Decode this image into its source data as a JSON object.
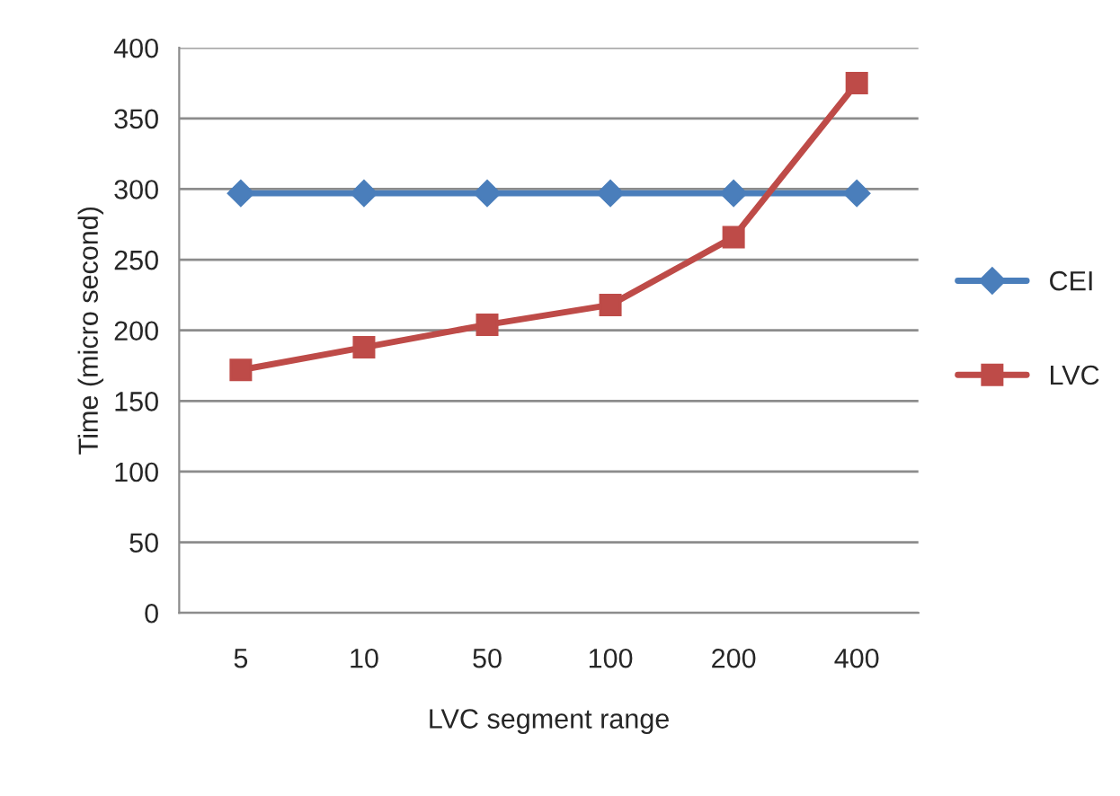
{
  "chart_data": {
    "type": "line",
    "xlabel": "LVC segment range",
    "ylabel": "Time (micro second)",
    "categories": [
      "5",
      "10",
      "50",
      "100",
      "200",
      "400"
    ],
    "series": [
      {
        "name": "CEI",
        "color": "#4a7ebb",
        "marker": "diamond",
        "values": [
          297,
          297,
          297,
          297,
          297,
          297
        ]
      },
      {
        "name": "LVC",
        "color": "#be4b48",
        "marker": "square",
        "values": [
          172,
          188,
          204,
          218,
          266,
          375
        ]
      }
    ],
    "ylim": [
      0,
      400
    ],
    "yticks": [
      0,
      50,
      100,
      150,
      200,
      250,
      300,
      350,
      400
    ],
    "grid": "y",
    "legend": "right",
    "line_style": "solid"
  }
}
